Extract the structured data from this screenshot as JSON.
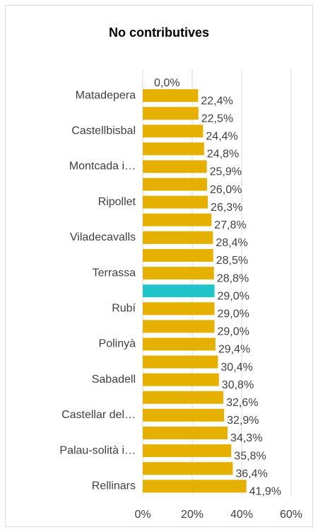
{
  "chart_data": {
    "type": "bar",
    "orientation": "horizontal",
    "title": "No contributives",
    "categories": [
      null,
      "Matadepera",
      null,
      "Castellbisbal",
      null,
      "Montcada i…",
      null,
      "Ripollet",
      null,
      "Viladecavalls",
      null,
      "Terrassa",
      null,
      "Rubí",
      null,
      "Polinyà",
      null,
      "Sabadell",
      null,
      "Castellar del…",
      null,
      "Palau-solità i…",
      null,
      "Rellinars"
    ],
    "values": [
      0,
      22.4,
      22.5,
      24.4,
      24.8,
      25.9,
      26.0,
      26.3,
      27.8,
      28.4,
      28.5,
      28.8,
      29.0,
      29.0,
      29.0,
      29.4,
      30.4,
      30.8,
      32.6,
      32.9,
      34.3,
      35.8,
      36.4,
      41.9
    ],
    "value_labels": [
      "0,0%",
      "22,4%",
      "22,5%",
      "24,4%",
      "24,8%",
      "25,9%",
      "26,0%",
      "26,3%",
      "27,8%",
      "28,4%",
      "28,5%",
      "28,8%",
      "29,0%",
      "29,0%",
      "29,0%",
      "29,4%",
      "30,4%",
      "30,8%",
      "32,6%",
      "32,9%",
      "34,3%",
      "35,8%",
      "36,4%",
      "41,9%"
    ],
    "colors": [
      "#e6b000",
      "#e6b000",
      "#e6b000",
      "#e6b000",
      "#e6b000",
      "#e6b000",
      "#e6b000",
      "#e6b000",
      "#e6b000",
      "#e6b000",
      "#e6b000",
      "#e6b000",
      "#21c4c8",
      "#e6b000",
      "#e6b000",
      "#e6b000",
      "#e6b000",
      "#e6b000",
      "#e6b000",
      "#e6b000",
      "#e6b000",
      "#e6b000",
      "#e6b000",
      "#e6b000"
    ],
    "xlim": [
      0,
      60
    ],
    "xticks": [
      {
        "value": 0,
        "label": "0%"
      },
      {
        "value": 20,
        "label": "20%"
      },
      {
        "value": 40,
        "label": "40%"
      },
      {
        "value": 60,
        "label": "60%"
      }
    ],
    "grid": true
  }
}
